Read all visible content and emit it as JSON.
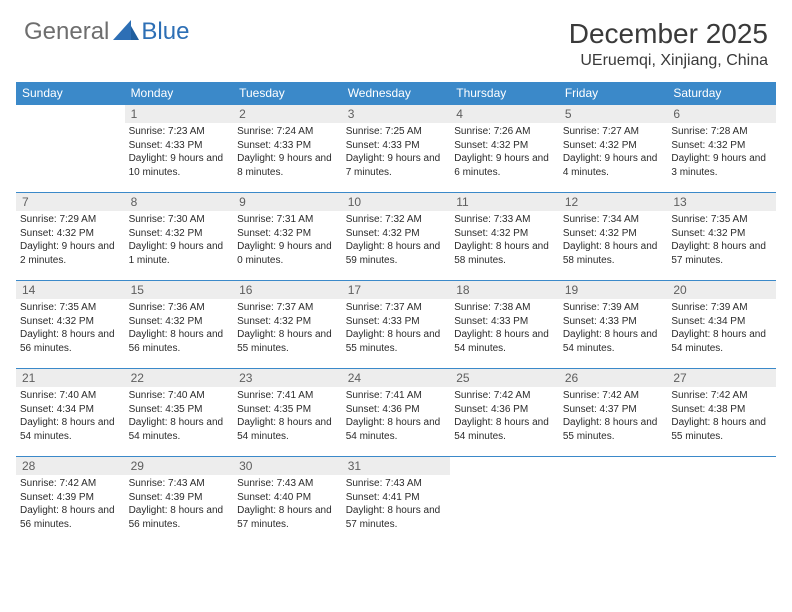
{
  "logo": {
    "text_general": "General",
    "text_blue": "Blue",
    "triangle_color": "#2d6fb5"
  },
  "title": "December 2025",
  "location": "UEruemqi, Xinjiang, China",
  "colors": {
    "header_bg": "#3b89c9",
    "header_text": "#ffffff",
    "daynum_bg": "#ededed",
    "daynum_text": "#5e5e5e",
    "cell_border": "#3b89c9",
    "body_text": "#2b2b2b",
    "title_text": "#3a3a3a"
  },
  "weekdays": [
    "Sunday",
    "Monday",
    "Tuesday",
    "Wednesday",
    "Thursday",
    "Friday",
    "Saturday"
  ],
  "cells": [
    {
      "day": "",
      "sunrise": "",
      "sunset": "",
      "daylight": ""
    },
    {
      "day": "1",
      "sunrise": "Sunrise: 7:23 AM",
      "sunset": "Sunset: 4:33 PM",
      "daylight": "Daylight: 9 hours and 10 minutes."
    },
    {
      "day": "2",
      "sunrise": "Sunrise: 7:24 AM",
      "sunset": "Sunset: 4:33 PM",
      "daylight": "Daylight: 9 hours and 8 minutes."
    },
    {
      "day": "3",
      "sunrise": "Sunrise: 7:25 AM",
      "sunset": "Sunset: 4:33 PM",
      "daylight": "Daylight: 9 hours and 7 minutes."
    },
    {
      "day": "4",
      "sunrise": "Sunrise: 7:26 AM",
      "sunset": "Sunset: 4:32 PM",
      "daylight": "Daylight: 9 hours and 6 minutes."
    },
    {
      "day": "5",
      "sunrise": "Sunrise: 7:27 AM",
      "sunset": "Sunset: 4:32 PM",
      "daylight": "Daylight: 9 hours and 4 minutes."
    },
    {
      "day": "6",
      "sunrise": "Sunrise: 7:28 AM",
      "sunset": "Sunset: 4:32 PM",
      "daylight": "Daylight: 9 hours and 3 minutes."
    },
    {
      "day": "7",
      "sunrise": "Sunrise: 7:29 AM",
      "sunset": "Sunset: 4:32 PM",
      "daylight": "Daylight: 9 hours and 2 minutes."
    },
    {
      "day": "8",
      "sunrise": "Sunrise: 7:30 AM",
      "sunset": "Sunset: 4:32 PM",
      "daylight": "Daylight: 9 hours and 1 minute."
    },
    {
      "day": "9",
      "sunrise": "Sunrise: 7:31 AM",
      "sunset": "Sunset: 4:32 PM",
      "daylight": "Daylight: 9 hours and 0 minutes."
    },
    {
      "day": "10",
      "sunrise": "Sunrise: 7:32 AM",
      "sunset": "Sunset: 4:32 PM",
      "daylight": "Daylight: 8 hours and 59 minutes."
    },
    {
      "day": "11",
      "sunrise": "Sunrise: 7:33 AM",
      "sunset": "Sunset: 4:32 PM",
      "daylight": "Daylight: 8 hours and 58 minutes."
    },
    {
      "day": "12",
      "sunrise": "Sunrise: 7:34 AM",
      "sunset": "Sunset: 4:32 PM",
      "daylight": "Daylight: 8 hours and 58 minutes."
    },
    {
      "day": "13",
      "sunrise": "Sunrise: 7:35 AM",
      "sunset": "Sunset: 4:32 PM",
      "daylight": "Daylight: 8 hours and 57 minutes."
    },
    {
      "day": "14",
      "sunrise": "Sunrise: 7:35 AM",
      "sunset": "Sunset: 4:32 PM",
      "daylight": "Daylight: 8 hours and 56 minutes."
    },
    {
      "day": "15",
      "sunrise": "Sunrise: 7:36 AM",
      "sunset": "Sunset: 4:32 PM",
      "daylight": "Daylight: 8 hours and 56 minutes."
    },
    {
      "day": "16",
      "sunrise": "Sunrise: 7:37 AM",
      "sunset": "Sunset: 4:32 PM",
      "daylight": "Daylight: 8 hours and 55 minutes."
    },
    {
      "day": "17",
      "sunrise": "Sunrise: 7:37 AM",
      "sunset": "Sunset: 4:33 PM",
      "daylight": "Daylight: 8 hours and 55 minutes."
    },
    {
      "day": "18",
      "sunrise": "Sunrise: 7:38 AM",
      "sunset": "Sunset: 4:33 PM",
      "daylight": "Daylight: 8 hours and 54 minutes."
    },
    {
      "day": "19",
      "sunrise": "Sunrise: 7:39 AM",
      "sunset": "Sunset: 4:33 PM",
      "daylight": "Daylight: 8 hours and 54 minutes."
    },
    {
      "day": "20",
      "sunrise": "Sunrise: 7:39 AM",
      "sunset": "Sunset: 4:34 PM",
      "daylight": "Daylight: 8 hours and 54 minutes."
    },
    {
      "day": "21",
      "sunrise": "Sunrise: 7:40 AM",
      "sunset": "Sunset: 4:34 PM",
      "daylight": "Daylight: 8 hours and 54 minutes."
    },
    {
      "day": "22",
      "sunrise": "Sunrise: 7:40 AM",
      "sunset": "Sunset: 4:35 PM",
      "daylight": "Daylight: 8 hours and 54 minutes."
    },
    {
      "day": "23",
      "sunrise": "Sunrise: 7:41 AM",
      "sunset": "Sunset: 4:35 PM",
      "daylight": "Daylight: 8 hours and 54 minutes."
    },
    {
      "day": "24",
      "sunrise": "Sunrise: 7:41 AM",
      "sunset": "Sunset: 4:36 PM",
      "daylight": "Daylight: 8 hours and 54 minutes."
    },
    {
      "day": "25",
      "sunrise": "Sunrise: 7:42 AM",
      "sunset": "Sunset: 4:36 PM",
      "daylight": "Daylight: 8 hours and 54 minutes."
    },
    {
      "day": "26",
      "sunrise": "Sunrise: 7:42 AM",
      "sunset": "Sunset: 4:37 PM",
      "daylight": "Daylight: 8 hours and 55 minutes."
    },
    {
      "day": "27",
      "sunrise": "Sunrise: 7:42 AM",
      "sunset": "Sunset: 4:38 PM",
      "daylight": "Daylight: 8 hours and 55 minutes."
    },
    {
      "day": "28",
      "sunrise": "Sunrise: 7:42 AM",
      "sunset": "Sunset: 4:39 PM",
      "daylight": "Daylight: 8 hours and 56 minutes."
    },
    {
      "day": "29",
      "sunrise": "Sunrise: 7:43 AM",
      "sunset": "Sunset: 4:39 PM",
      "daylight": "Daylight: 8 hours and 56 minutes."
    },
    {
      "day": "30",
      "sunrise": "Sunrise: 7:43 AM",
      "sunset": "Sunset: 4:40 PM",
      "daylight": "Daylight: 8 hours and 57 minutes."
    },
    {
      "day": "31",
      "sunrise": "Sunrise: 7:43 AM",
      "sunset": "Sunset: 4:41 PM",
      "daylight": "Daylight: 8 hours and 57 minutes."
    },
    {
      "day": "",
      "sunrise": "",
      "sunset": "",
      "daylight": ""
    },
    {
      "day": "",
      "sunrise": "",
      "sunset": "",
      "daylight": ""
    },
    {
      "day": "",
      "sunrise": "",
      "sunset": "",
      "daylight": ""
    }
  ]
}
